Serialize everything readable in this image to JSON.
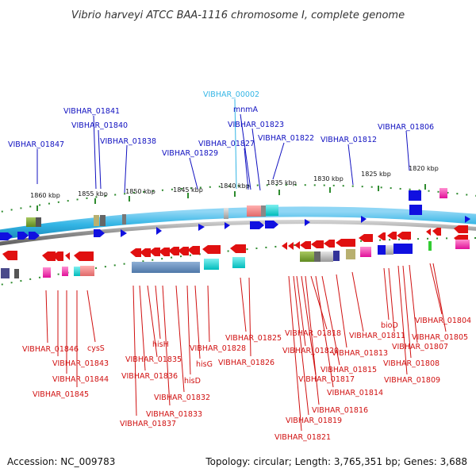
{
  "title": "Vibrio harveyi ATCC BAA-1116 chromosome I, complete genome",
  "footer": {
    "accession": "Accession: NC_009783",
    "stats": "Topology: circular; Length: 3,765,351 bp; Genes: 3,688"
  },
  "colors": {
    "forward_gene": "#1010e0",
    "reverse_gene": "#e01010",
    "forward_track": "#33b5e5",
    "reverse_track": "#888888",
    "highlight_label": "#33b5e5",
    "tick": "#2e8b2e"
  },
  "scale_labels": [
    "1860 kbp",
    "1855 kbp",
    "1850 kbp",
    "1845 kbp",
    "1840 kbp",
    "1835 kbp",
    "1830 kbp",
    "1825 kbp",
    "1820 kbp"
  ],
  "forward_labels": [
    "VIBHAR_00002",
    "mnmA",
    "VIBHAR_01841",
    "VIBHAR_01823",
    "VIBHAR_01840",
    "VIBHAR_01806",
    "VIBHAR_01838",
    "VIBHAR_01822",
    "VIBHAR_01847",
    "VIBHAR_01827",
    "VIBHAR_01812",
    "VIBHAR_01829"
  ],
  "reverse_labels": [
    "VIBHAR_01804",
    "bioD",
    "VIBHAR_01825",
    "VIBHAR_01818",
    "VIBHAR_01811",
    "VIBHAR_01805",
    "cysS",
    "hisH",
    "VIBHAR_01846",
    "VIBHAR_01828",
    "VIBHAR_01820",
    "VIBHAR_01813",
    "VIBHAR_01807",
    "VIBHAR_01835",
    "VIBHAR_01843",
    "hisG",
    "VIBHAR_01826",
    "VIBHAR_01815",
    "VIBHAR_01808",
    "VIBHAR_01844",
    "VIBHAR_01836",
    "hisD",
    "VIBHAR_01817",
    "VIBHAR_01809",
    "VIBHAR_01845",
    "VIBHAR_01814",
    "VIBHAR_01832",
    "VIBHAR_01816",
    "VIBHAR_01833",
    "VIBHAR_01819",
    "VIBHAR_01837",
    "VIBHAR_01821"
  ]
}
